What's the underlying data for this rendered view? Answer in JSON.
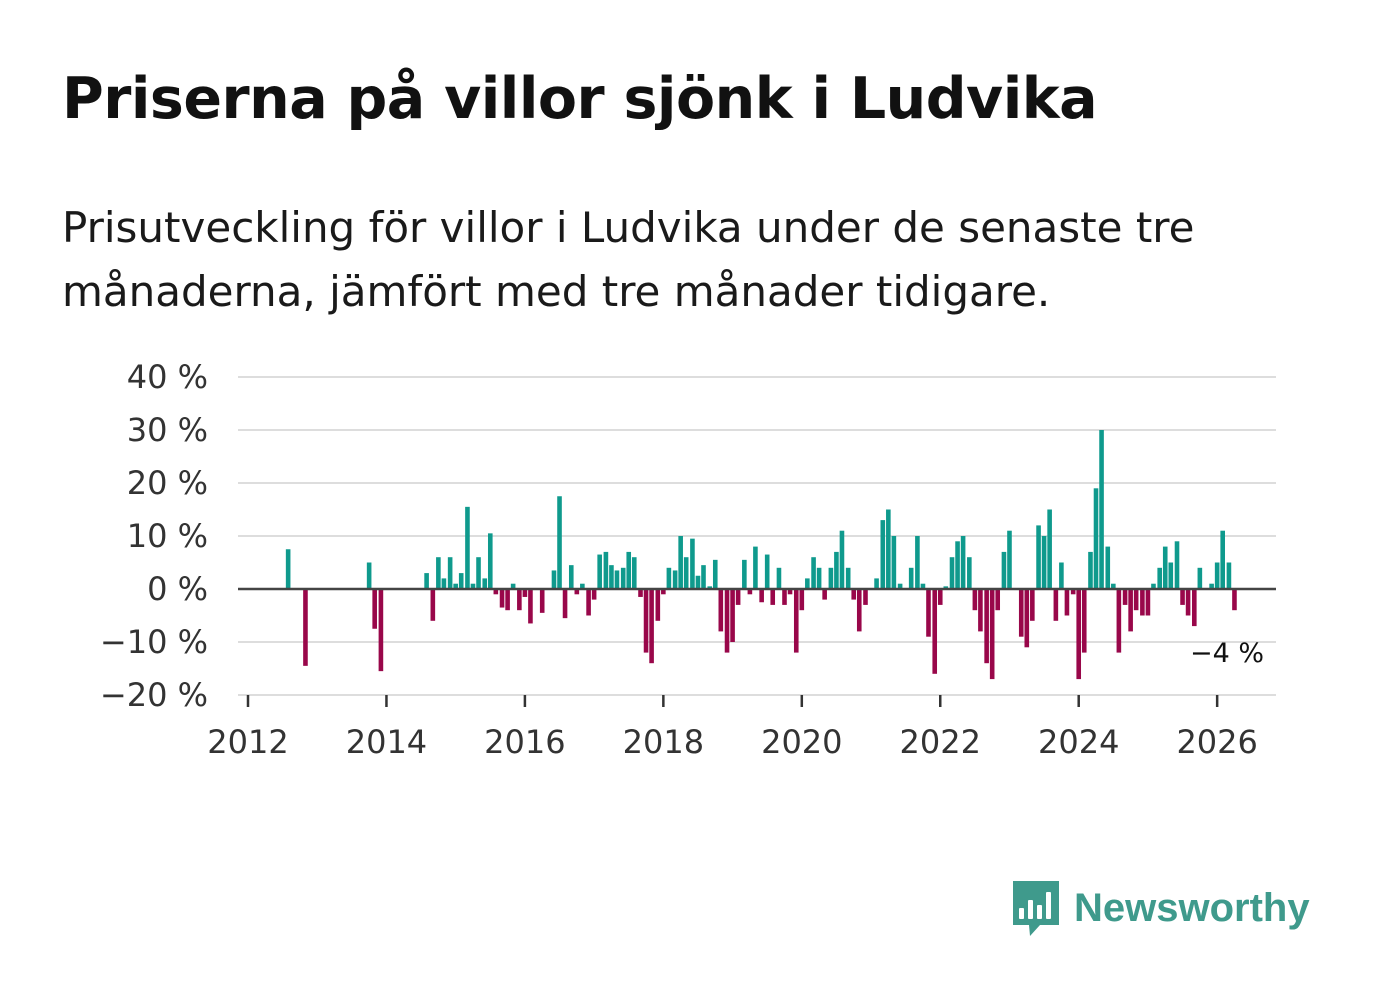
{
  "title": "Priserna på villor sjönk i Ludvika",
  "subtitle": "Prisutveckling för villor i Ludvika under de senaste tre månaderna, jämfört med tre månader tidigare.",
  "brand": {
    "name": "Newsworthy",
    "color": "#3f9a8c",
    "icon": "bar-chart-speech-bubble-icon"
  },
  "colors": {
    "positive": "#0f9a8d",
    "negative": "#99074a",
    "grid": "#dddddd",
    "axis": "#444444"
  },
  "chart_data": {
    "type": "bar",
    "title": "Priserna på villor sjönk i Ludvika",
    "ylim": [
      -20,
      40
    ],
    "yticks": [
      -20,
      -10,
      0,
      10,
      20,
      30,
      40
    ],
    "ytick_labels": [
      "−20 %",
      "−10 %",
      "0 %",
      "10 %",
      "20 %",
      "30 %",
      "40 %"
    ],
    "xlim": [
      2012,
      2026.85
    ],
    "xticks": [
      2012,
      2014,
      2016,
      2018,
      2020,
      2022,
      2024,
      2026
    ],
    "xtick_labels": [
      "2012",
      "2014",
      "2016",
      "2018",
      "2020",
      "2022",
      "2024",
      "2026"
    ],
    "last_label": "−4 %",
    "series": [
      {
        "name": "Prisutveckling",
        "points": [
          {
            "x": 2012.58,
            "y": 7.5
          },
          {
            "x": 2012.83,
            "y": -14.5
          },
          {
            "x": 2013.75,
            "y": 5
          },
          {
            "x": 2013.83,
            "y": -7.5
          },
          {
            "x": 2013.92,
            "y": -15.5
          },
          {
            "x": 2014.58,
            "y": 3
          },
          {
            "x": 2014.67,
            "y": -6
          },
          {
            "x": 2014.75,
            "y": 6
          },
          {
            "x": 2014.83,
            "y": 2
          },
          {
            "x": 2014.92,
            "y": 6
          },
          {
            "x": 2015.0,
            "y": 1
          },
          {
            "x": 2015.08,
            "y": 3
          },
          {
            "x": 2015.17,
            "y": 15.5
          },
          {
            "x": 2015.25,
            "y": 1
          },
          {
            "x": 2015.33,
            "y": 6
          },
          {
            "x": 2015.42,
            "y": 2
          },
          {
            "x": 2015.5,
            "y": 10.5
          },
          {
            "x": 2015.58,
            "y": -1
          },
          {
            "x": 2015.67,
            "y": -3.5
          },
          {
            "x": 2015.75,
            "y": -4
          },
          {
            "x": 2015.83,
            "y": 1
          },
          {
            "x": 2015.92,
            "y": -4
          },
          {
            "x": 2016.0,
            "y": -1.5
          },
          {
            "x": 2016.08,
            "y": -6.5
          },
          {
            "x": 2016.25,
            "y": -4.5
          },
          {
            "x": 2016.42,
            "y": 3.5
          },
          {
            "x": 2016.5,
            "y": 17.5
          },
          {
            "x": 2016.58,
            "y": -5.5
          },
          {
            "x": 2016.67,
            "y": 4.5
          },
          {
            "x": 2016.75,
            "y": -1
          },
          {
            "x": 2016.83,
            "y": 1
          },
          {
            "x": 2016.92,
            "y": -5
          },
          {
            "x": 2017.0,
            "y": -2
          },
          {
            "x": 2017.08,
            "y": 6.5
          },
          {
            "x": 2017.17,
            "y": 7
          },
          {
            "x": 2017.25,
            "y": 4.5
          },
          {
            "x": 2017.33,
            "y": 3.5
          },
          {
            "x": 2017.42,
            "y": 4
          },
          {
            "x": 2017.5,
            "y": 7
          },
          {
            "x": 2017.58,
            "y": 6
          },
          {
            "x": 2017.67,
            "y": -1.5
          },
          {
            "x": 2017.75,
            "y": -12
          },
          {
            "x": 2017.83,
            "y": -14
          },
          {
            "x": 2017.92,
            "y": -6
          },
          {
            "x": 2018.0,
            "y": -1
          },
          {
            "x": 2018.08,
            "y": 4
          },
          {
            "x": 2018.17,
            "y": 3.5
          },
          {
            "x": 2018.25,
            "y": 10
          },
          {
            "x": 2018.33,
            "y": 6
          },
          {
            "x": 2018.42,
            "y": 9.5
          },
          {
            "x": 2018.5,
            "y": 2.5
          },
          {
            "x": 2018.58,
            "y": 4.5
          },
          {
            "x": 2018.67,
            "y": 0.5
          },
          {
            "x": 2018.75,
            "y": 5.5
          },
          {
            "x": 2018.83,
            "y": -8
          },
          {
            "x": 2018.92,
            "y": -12
          },
          {
            "x": 2019.0,
            "y": -10
          },
          {
            "x": 2019.08,
            "y": -3
          },
          {
            "x": 2019.17,
            "y": 5.5
          },
          {
            "x": 2019.25,
            "y": -1
          },
          {
            "x": 2019.33,
            "y": 8
          },
          {
            "x": 2019.42,
            "y": -2.5
          },
          {
            "x": 2019.5,
            "y": 6.5
          },
          {
            "x": 2019.58,
            "y": -3
          },
          {
            "x": 2019.67,
            "y": 4
          },
          {
            "x": 2019.75,
            "y": -3
          },
          {
            "x": 2019.83,
            "y": -1
          },
          {
            "x": 2019.92,
            "y": -12
          },
          {
            "x": 2020.0,
            "y": -4
          },
          {
            "x": 2020.08,
            "y": 2
          },
          {
            "x": 2020.17,
            "y": 6
          },
          {
            "x": 2020.25,
            "y": 4
          },
          {
            "x": 2020.33,
            "y": -2
          },
          {
            "x": 2020.42,
            "y": 4
          },
          {
            "x": 2020.5,
            "y": 7
          },
          {
            "x": 2020.58,
            "y": 11
          },
          {
            "x": 2020.67,
            "y": 4
          },
          {
            "x": 2020.75,
            "y": -2
          },
          {
            "x": 2020.83,
            "y": -8
          },
          {
            "x": 2020.92,
            "y": -3
          },
          {
            "x": 2021.08,
            "y": 2
          },
          {
            "x": 2021.17,
            "y": 13
          },
          {
            "x": 2021.25,
            "y": 15
          },
          {
            "x": 2021.33,
            "y": 10
          },
          {
            "x": 2021.42,
            "y": 1
          },
          {
            "x": 2021.58,
            "y": 4
          },
          {
            "x": 2021.67,
            "y": 10
          },
          {
            "x": 2021.75,
            "y": 1
          },
          {
            "x": 2021.83,
            "y": -9
          },
          {
            "x": 2021.92,
            "y": -16
          },
          {
            "x": 2022.0,
            "y": -3
          },
          {
            "x": 2022.08,
            "y": 0.5
          },
          {
            "x": 2022.17,
            "y": 6
          },
          {
            "x": 2022.25,
            "y": 9
          },
          {
            "x": 2022.33,
            "y": 10
          },
          {
            "x": 2022.42,
            "y": 6
          },
          {
            "x": 2022.5,
            "y": -4
          },
          {
            "x": 2022.58,
            "y": -8
          },
          {
            "x": 2022.67,
            "y": -14
          },
          {
            "x": 2022.75,
            "y": -17
          },
          {
            "x": 2022.83,
            "y": -4
          },
          {
            "x": 2022.92,
            "y": 7
          },
          {
            "x": 2023.0,
            "y": 11
          },
          {
            "x": 2023.17,
            "y": -9
          },
          {
            "x": 2023.25,
            "y": -11
          },
          {
            "x": 2023.33,
            "y": -6
          },
          {
            "x": 2023.42,
            "y": 12
          },
          {
            "x": 2023.5,
            "y": 10
          },
          {
            "x": 2023.58,
            "y": 15
          },
          {
            "x": 2023.67,
            "y": -6
          },
          {
            "x": 2023.75,
            "y": 5
          },
          {
            "x": 2023.83,
            "y": -5
          },
          {
            "x": 2023.92,
            "y": -1
          },
          {
            "x": 2024.0,
            "y": -17
          },
          {
            "x": 2024.08,
            "y": -12
          },
          {
            "x": 2024.17,
            "y": 7
          },
          {
            "x": 2024.25,
            "y": 19
          },
          {
            "x": 2024.33,
            "y": 30
          },
          {
            "x": 2024.42,
            "y": 8
          },
          {
            "x": 2024.5,
            "y": 1
          },
          {
            "x": 2024.58,
            "y": -12
          },
          {
            "x": 2024.67,
            "y": -3
          },
          {
            "x": 2024.75,
            "y": -8
          },
          {
            "x": 2024.83,
            "y": -4
          },
          {
            "x": 2024.92,
            "y": -5
          },
          {
            "x": 2025.0,
            "y": -5
          },
          {
            "x": 2025.08,
            "y": 1
          },
          {
            "x": 2025.17,
            "y": 4
          },
          {
            "x": 2025.25,
            "y": 8
          },
          {
            "x": 2025.33,
            "y": 5
          },
          {
            "x": 2025.42,
            "y": 9
          },
          {
            "x": 2025.5,
            "y": -3
          },
          {
            "x": 2025.58,
            "y": -5
          },
          {
            "x": 2025.67,
            "y": -7
          },
          {
            "x": 2025.75,
            "y": 4
          },
          {
            "x": 2025.92,
            "y": 1
          },
          {
            "x": 2026.0,
            "y": 5
          },
          {
            "x": 2026.08,
            "y": 11
          },
          {
            "x": 2026.17,
            "y": 5
          },
          {
            "x": 2026.25,
            "y": -4
          }
        ]
      }
    ]
  }
}
